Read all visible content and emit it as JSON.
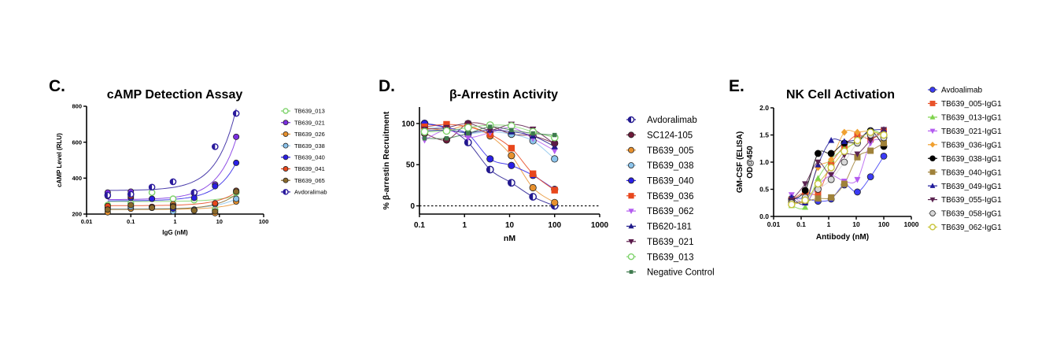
{
  "chart_data": [
    {
      "panel": "C.",
      "type": "scatter",
      "title": "cAMP Detection Assay",
      "xlabel": "IgG (nM)",
      "ylabel": "cAMP Level (RLU)",
      "ylabel2": "",
      "xscale": "log",
      "xlim": [
        0.01,
        100
      ],
      "ylim": [
        200,
        800
      ],
      "xticks": [
        "0.01",
        "0.1",
        "1",
        "10",
        "100"
      ],
      "yticks": [
        "200",
        "400",
        "600",
        "800"
      ],
      "fit": "linear",
      "x": [
        0.03,
        0.1,
        0.3,
        0.9,
        2.7,
        8,
        24
      ],
      "series": [
        {
          "name": "TB639_013",
          "color": "#7ed36b",
          "marker": "circle-open",
          "values": [
            250,
            260,
            320,
            285,
            278,
            225,
            320
          ]
        },
        {
          "name": "TB639_021",
          "color": "#7b2fe0",
          "marker": "circle",
          "values": [
            320,
            325,
            285,
            230,
            315,
            365,
            630
          ]
        },
        {
          "name": "TB639_026",
          "color": "#e8912e",
          "marker": "circle",
          "values": [
            210,
            230,
            240,
            255,
            220,
            205,
            270
          ]
        },
        {
          "name": "TB639_038",
          "color": "#8cc4ec",
          "marker": "circle",
          "values": [
            235,
            240,
            235,
            215,
            225,
            255,
            285
          ]
        },
        {
          "name": "TB639_040",
          "color": "#2a1fe6",
          "marker": "circle",
          "values": [
            300,
            290,
            285,
            230,
            290,
            355,
            485
          ]
        },
        {
          "name": "TB639_041",
          "color": "#e8471c",
          "marker": "circle",
          "values": [
            245,
            300,
            240,
            245,
            220,
            260,
            330
          ]
        },
        {
          "name": "TB639_065",
          "color": "#8a6a2c",
          "marker": "circle",
          "values": [
            225,
            250,
            235,
            240,
            220,
            215,
            325
          ]
        },
        {
          "name": "Avdoralimab",
          "color": "#2a1a9c",
          "marker": "circle-half",
          "values": [
            305,
            310,
            350,
            380,
            320,
            575,
            760
          ]
        }
      ]
    },
    {
      "panel": "D.",
      "type": "line",
      "title": "β-Arrestin Activity",
      "xlabel": "nM",
      "ylabel": "% β-arrestin Recruitment",
      "ylabel2": "",
      "xscale": "log",
      "xlim": [
        0.1,
        1000
      ],
      "ylim": [
        -10,
        120
      ],
      "xticks": [
        "0.1",
        "1",
        "10",
        "100",
        "1000"
      ],
      "yticks": [
        "0",
        "50",
        "100"
      ],
      "reference_line": {
        "y": 0,
        "style": "dashed"
      },
      "x": [
        0.13,
        0.4,
        1.2,
        3.7,
        11,
        33,
        100
      ],
      "series": [
        {
          "name": "Avdoralimab",
          "color": "#22188f",
          "marker": "circle-half",
          "values": [
            100,
            95,
            77,
            44,
            28,
            11,
            0
          ]
        },
        {
          "name": "SC124-105",
          "color": "#6e1a3a",
          "marker": "circle",
          "values": [
            88,
            80,
            100,
            97,
            87,
            85,
            76
          ]
        },
        {
          "name": "TB639_005",
          "color": "#e8912e",
          "marker": "circle",
          "values": [
            95,
            92,
            97,
            85,
            61,
            22,
            4
          ]
        },
        {
          "name": "TB639_038",
          "color": "#8cc4ec",
          "marker": "circle",
          "values": [
            97,
            93,
            88,
            90,
            87,
            79,
            57
          ]
        },
        {
          "name": "TB639_040",
          "color": "#2a1fe6",
          "marker": "circle",
          "values": [
            100,
            95,
            87,
            57,
            49,
            37,
            20
          ]
        },
        {
          "name": "TB639_036",
          "color": "#e8471c",
          "marker": "square",
          "values": [
            96,
            99,
            96,
            87,
            70,
            39,
            19
          ]
        },
        {
          "name": "TB639_062",
          "color": "#b45cf0",
          "marker": "triangle-down",
          "values": [
            80,
            92,
            83,
            89,
            95,
            82,
            67
          ]
        },
        {
          "name": "TB620-181",
          "color": "#1f1a8a",
          "marker": "triangle-up",
          "values": [
            91,
            92,
            89,
            92,
            90,
            85,
            72
          ]
        },
        {
          "name": "TB639_021",
          "color": "#5a1a4a",
          "marker": "triangle-down",
          "values": [
            93,
            95,
            100,
            92,
            99,
            93,
            75
          ]
        },
        {
          "name": "TB639_013",
          "color": "#7ed36b",
          "marker": "circle-open",
          "values": [
            90,
            91,
            95,
            98,
            97,
            90,
            83
          ]
        },
        {
          "name": "Negative Control",
          "color": "#3e7a4e",
          "marker": "square-small",
          "values": [
            82,
            82,
            88,
            96,
            92,
            88,
            86
          ]
        }
      ]
    },
    {
      "panel": "E.",
      "type": "line",
      "title": "NK Cell Activation",
      "xlabel": "Antibody (nM)",
      "ylabel": "GM-CSF (ELISA)",
      "ylabel2": "OD@450",
      "xscale": "log",
      "xlim": [
        0.01,
        1000
      ],
      "ylim": [
        0,
        2
      ],
      "xticks": [
        "0.01",
        "0.1",
        "1",
        "10",
        "100",
        "1000"
      ],
      "yticks": [
        "0.0",
        "0.5",
        "1.0",
        "1.5",
        "2.0"
      ],
      "x": [
        0.045,
        0.14,
        0.41,
        1.23,
        3.7,
        11,
        33,
        100
      ],
      "series": [
        {
          "name": "Avdoalimab",
          "color": "#3b3bf5",
          "marker": "circle",
          "values": [
            0.33,
            0.33,
            0.28,
            0.32,
            0.58,
            0.45,
            0.73,
            1.11
          ]
        },
        {
          "name": "TB639_005-IgG1",
          "color": "#e8532a",
          "marker": "square",
          "values": [
            0.3,
            0.45,
            0.43,
            0.97,
            1.3,
            1.5,
            1.42,
            1.57
          ]
        },
        {
          "name": "TB639_013-IgG1",
          "color": "#7ed34b",
          "marker": "triangle-up",
          "values": [
            0.2,
            0.17,
            0.7,
            1.05,
            1.25,
            1.37,
            1.58,
            1.5
          ]
        },
        {
          "name": "TB639_021-IgG1",
          "color": "#b45cf0",
          "marker": "triangle-down",
          "values": [
            0.4,
            0.25,
            0.57,
            0.75,
            0.65,
            0.68,
            1.35,
            1.4
          ]
        },
        {
          "name": "TB639_036-IgG1",
          "color": "#f0a030",
          "marker": "diamond",
          "values": [
            0.27,
            0.3,
            0.9,
            1.05,
            1.55,
            1.55,
            1.57,
            1.48
          ]
        },
        {
          "name": "TB639_038-IgG1",
          "color": "#000000",
          "marker": "circle",
          "values": [
            0.3,
            0.48,
            1.16,
            1.16,
            1.35,
            1.37,
            1.58,
            1.29
          ]
        },
        {
          "name": "TB639_040-IgG1",
          "color": "#a0823a",
          "marker": "square",
          "values": [
            0.25,
            0.28,
            0.33,
            0.35,
            0.6,
            1.09,
            1.21,
            1.35
          ]
        },
        {
          "name": "TB639_049-IgG1",
          "color": "#1f1a9a",
          "marker": "triangle-up",
          "values": [
            0.35,
            0.25,
            0.95,
            1.4,
            1.38,
            1.42,
            1.58,
            1.6
          ]
        },
        {
          "name": "TB639_055-IgG1",
          "color": "#5a2350",
          "marker": "triangle-down",
          "values": [
            0.3,
            0.6,
            1.0,
            0.77,
            1.13,
            1.15,
            1.4,
            1.6
          ]
        },
        {
          "name": "TB639_058-IgG1",
          "color": "#d8d8d8",
          "marker": "circle",
          "values": [
            0.25,
            0.35,
            0.5,
            0.68,
            1.0,
            1.35,
            1.5,
            1.45
          ]
        },
        {
          "name": "TB639_062-IgG1",
          "color": "#c8c43a",
          "marker": "circle-open",
          "values": [
            0.22,
            0.3,
            0.6,
            0.9,
            1.2,
            1.4,
            1.55,
            1.5
          ]
        }
      ]
    }
  ]
}
